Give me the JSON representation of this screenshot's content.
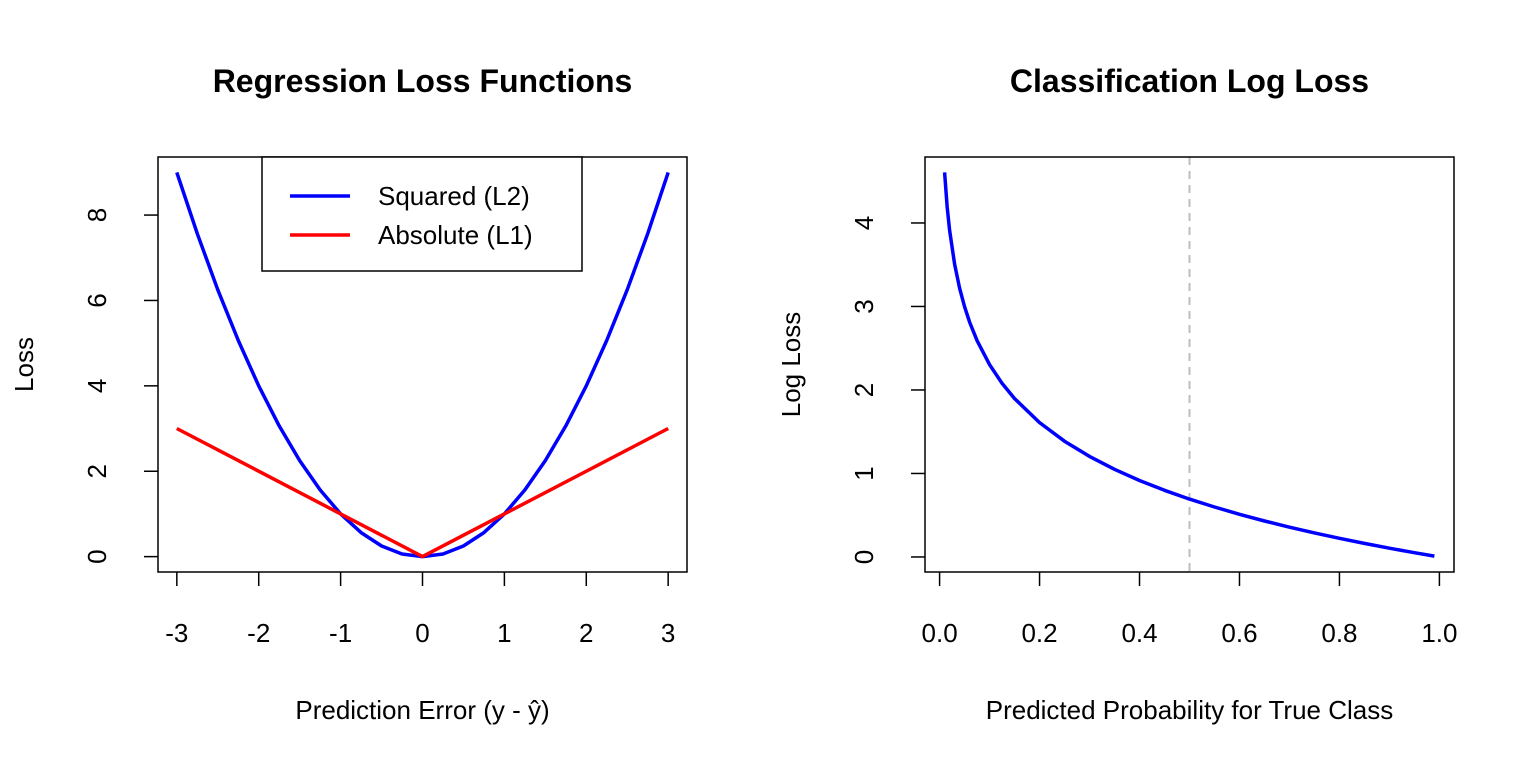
{
  "chart_data": [
    {
      "type": "line",
      "title": "Regression Loss Functions",
      "xlabel": "Prediction Error (y - ŷ)",
      "ylabel": "Loss",
      "xlim": [
        -3.23,
        3.23
      ],
      "ylim": [
        -0.36,
        9.36
      ],
      "xticks": [
        -3,
        -2,
        -1,
        0,
        1,
        2,
        3
      ],
      "yticks": [
        0,
        2,
        4,
        6,
        8
      ],
      "legend": {
        "position": "top-center",
        "entries": [
          {
            "label": "Squared (L2)",
            "color": "#0000ff"
          },
          {
            "label": "Absolute (L1)",
            "color": "#ff0000"
          }
        ]
      },
      "series": [
        {
          "name": "Squared (L2)",
          "color": "#0000ff",
          "x": [
            -3,
            -2.75,
            -2.5,
            -2.25,
            -2,
            -1.75,
            -1.5,
            -1.25,
            -1,
            -0.75,
            -0.5,
            -0.25,
            0,
            0.25,
            0.5,
            0.75,
            1,
            1.25,
            1.5,
            1.75,
            2,
            2.25,
            2.5,
            2.75,
            3
          ],
          "y": [
            9,
            7.5625,
            6.25,
            5.0625,
            4,
            3.0625,
            2.25,
            1.5625,
            1,
            0.5625,
            0.25,
            0.0625,
            0,
            0.0625,
            0.25,
            0.5625,
            1,
            1.5625,
            2.25,
            3.0625,
            4,
            5.0625,
            6.25,
            7.5625,
            9
          ]
        },
        {
          "name": "Absolute (L1)",
          "color": "#ff0000",
          "x": [
            -3,
            0,
            3
          ],
          "y": [
            3,
            0,
            3
          ]
        }
      ]
    },
    {
      "type": "line",
      "title": "Classification Log Loss",
      "xlabel": "Predicted Probability for True Class",
      "ylabel": "Log Loss",
      "xlim": [
        -0.0292,
        1.0292
      ],
      "ylim": [
        -0.18,
        4.79
      ],
      "xticks": [
        "0.0",
        "0.2",
        "0.4",
        "0.6",
        "0.8",
        "1.0"
      ],
      "yticks": [
        0,
        1,
        2,
        3,
        4
      ],
      "vline": {
        "x": 0.5,
        "color": "#bebebe",
        "style": "dashed"
      },
      "series": [
        {
          "name": "Log Loss",
          "color": "#0000ff",
          "x": [
            0.01,
            0.015,
            0.02,
            0.03,
            0.04,
            0.05,
            0.06,
            0.075,
            0.1,
            0.125,
            0.15,
            0.2,
            0.25,
            0.3,
            0.35,
            0.4,
            0.45,
            0.5,
            0.55,
            0.6,
            0.65,
            0.7,
            0.75,
            0.8,
            0.85,
            0.9,
            0.95,
            0.99
          ],
          "y": [
            4.605,
            4.2,
            3.912,
            3.507,
            3.219,
            2.996,
            2.813,
            2.59,
            2.303,
            2.079,
            1.897,
            1.609,
            1.386,
            1.204,
            1.05,
            0.916,
            0.799,
            0.693,
            0.598,
            0.511,
            0.431,
            0.357,
            0.288,
            0.223,
            0.163,
            0.105,
            0.051,
            0.01
          ]
        }
      ]
    }
  ]
}
